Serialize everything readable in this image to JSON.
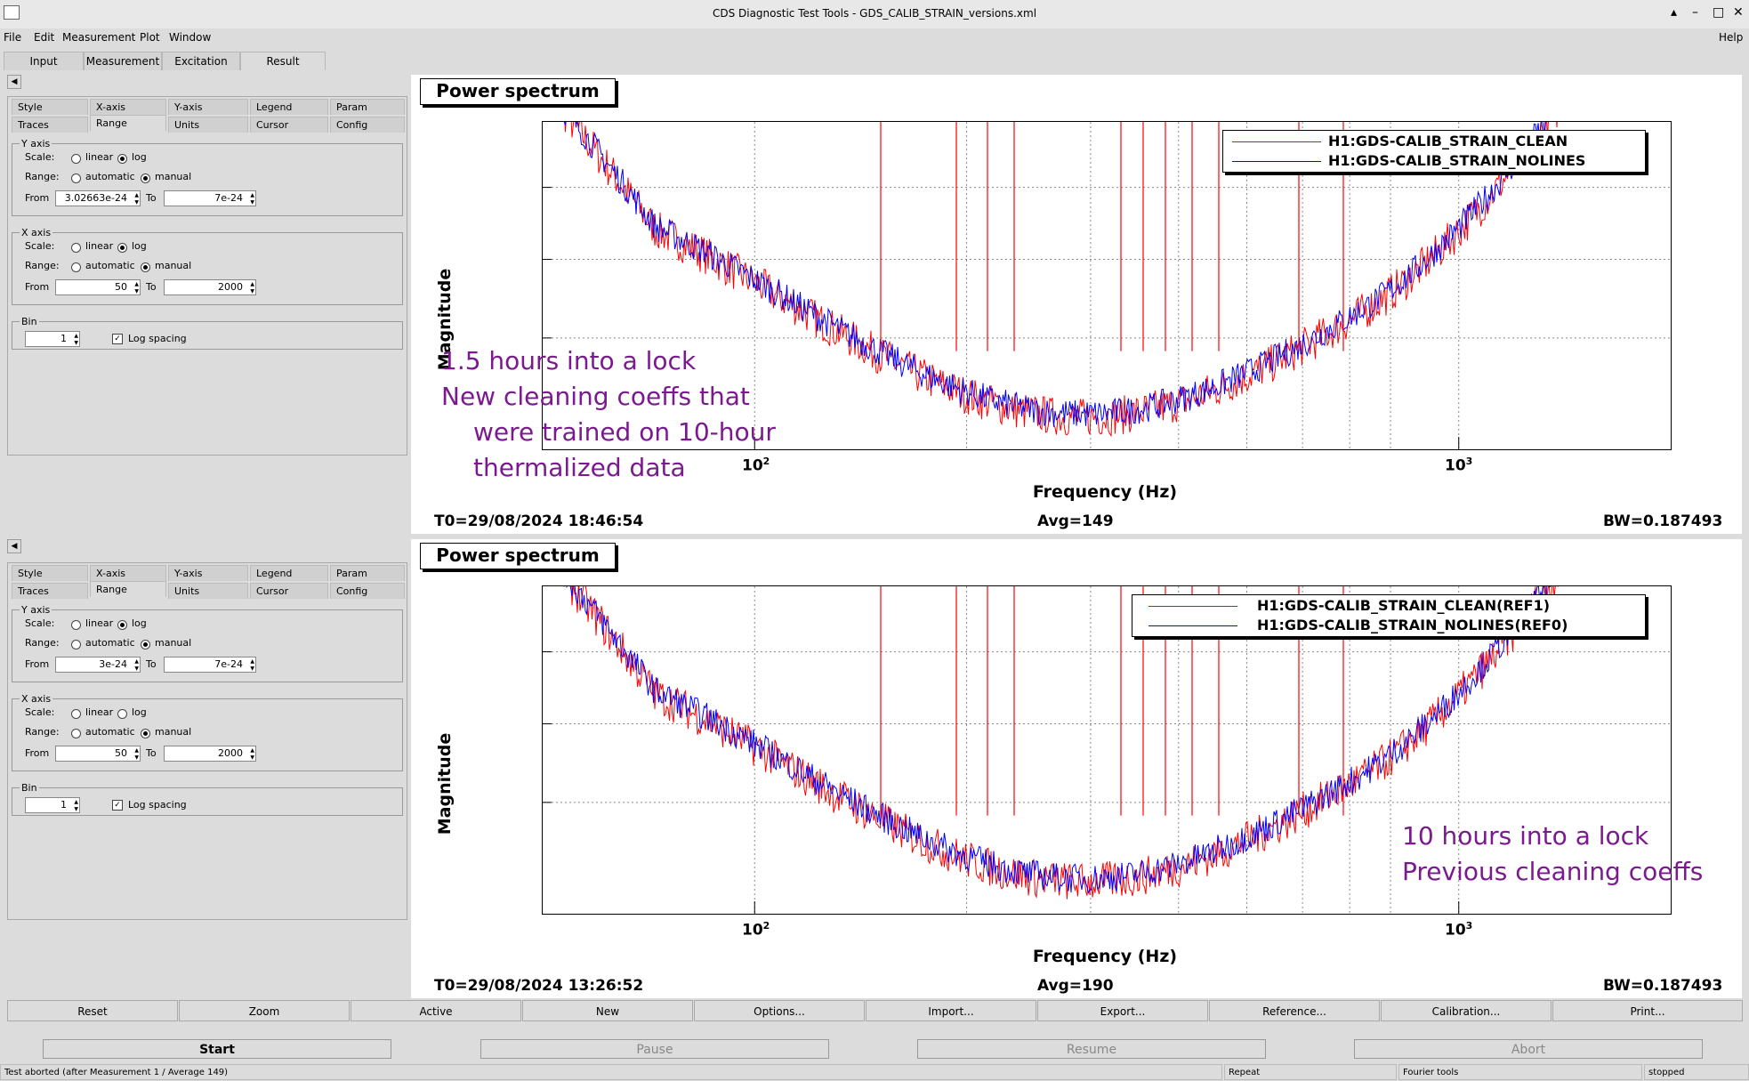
{
  "window": {
    "title": "CDS Diagnostic Test Tools - GDS_CALIB_STRAIN_versions.xml"
  },
  "menu": {
    "file": "File",
    "edit": "Edit",
    "measurement": "Measurement",
    "plot": "Plot",
    "window": "Window",
    "help": "Help"
  },
  "main_tabs": [
    "Input",
    "Measurement",
    "Excitation",
    "Result"
  ],
  "panels": [
    {
      "options": {
        "tabs_row1": [
          "Style",
          "X-axis",
          "Y-axis",
          "Legend",
          "Param"
        ],
        "tabs_row2": [
          "Traces",
          "Range",
          "Units",
          "Cursor",
          "Config"
        ],
        "yaxis": {
          "legend": "Y axis",
          "scale_label": "Scale:",
          "linear": "linear",
          "log": "log",
          "range_label": "Range:",
          "automatic": "automatic",
          "manual": "manual",
          "from_label": "From",
          "from": "3.02663e-24",
          "to_label": "To",
          "to": "7e-24"
        },
        "xaxis": {
          "legend": "X axis",
          "scale_label": "Scale:",
          "linear": "linear",
          "log": "log",
          "range_label": "Range:",
          "automatic": "automatic",
          "manual": "manual",
          "from_label": "From",
          "from": "50",
          "to_label": "To",
          "to": "2000"
        },
        "bin": {
          "legend": "Bin",
          "value": "1",
          "log_spacing": "Log spacing"
        }
      },
      "plot": {
        "title": "Power spectrum",
        "ylabel": "Magnitude",
        "xlabel": "Frequency (Hz)",
        "xtick_100": "10",
        "xtick_100_exp": "2",
        "xtick_1000": "10",
        "xtick_1000_exp": "3",
        "t0": "T0=29/08/2024 18:46:54",
        "avg": "Avg=149",
        "bw": "BW=0.187493",
        "legend": [
          "H1:GDS-CALIB_STRAIN_CLEAN",
          "H1:GDS-CALIB_STRAIN_NOLINES"
        ],
        "annotation": [
          "1.5 hours into a lock",
          "New cleaning coeffs that",
          "were trained on 10-hour",
          "thermalized data"
        ]
      }
    },
    {
      "options": {
        "tabs_row1": [
          "Style",
          "X-axis",
          "Y-axis",
          "Legend",
          "Param"
        ],
        "tabs_row2": [
          "Traces",
          "Range",
          "Units",
          "Cursor",
          "Config"
        ],
        "yaxis": {
          "legend": "Y axis",
          "scale_label": "Scale:",
          "linear": "linear",
          "log": "log",
          "range_label": "Range:",
          "automatic": "automatic",
          "manual": "manual",
          "from_label": "From",
          "from": "3e-24",
          "to_label": "To",
          "to": "7e-24"
        },
        "xaxis": {
          "legend": "X axis",
          "scale_label": "Scale:",
          "linear": "linear",
          "log": "log",
          "range_label": "Range:",
          "automatic": "automatic",
          "manual": "manual",
          "from_label": "From",
          "from": "50",
          "to_label": "To",
          "to": "2000"
        },
        "bin": {
          "legend": "Bin",
          "value": "1",
          "log_spacing": "Log spacing"
        }
      },
      "plot": {
        "title": "Power spectrum",
        "ylabel": "Magnitude",
        "xlabel": "Frequency (Hz)",
        "xtick_100": "10",
        "xtick_100_exp": "2",
        "xtick_1000": "10",
        "xtick_1000_exp": "3",
        "t0": "T0=29/08/2024 13:26:52",
        "avg": "Avg=190",
        "bw": "BW=0.187493",
        "legend": [
          "H1:GDS-CALIB_STRAIN_CLEAN(REF1)",
          "H1:GDS-CALIB_STRAIN_NOLINES(REF0)"
        ],
        "annotation": [
          "10 hours into a lock",
          "Previous cleaning coeffs"
        ]
      }
    }
  ],
  "buttons": [
    "Reset",
    "Zoom",
    "Active",
    "New",
    "Options...",
    "Import...",
    "Export...",
    "Reference...",
    "Calibration...",
    "Print..."
  ],
  "controls": [
    "Start",
    "Pause",
    "Resume",
    "Abort"
  ],
  "status": {
    "message": "Test aborted (after Measurement 1 / Average 149)",
    "mode": "Repeat",
    "tool": "Fourier tools",
    "state": "stopped"
  },
  "colors": {
    "clean": "#ff0000",
    "nolines": "#0000ff",
    "annotation": "#7b1a8f"
  },
  "chart_data": [
    {
      "type": "line",
      "title": "Power spectrum",
      "xlabel": "Frequency (Hz)",
      "ylabel": "Magnitude",
      "xlim": [
        50,
        2000
      ],
      "ylim": [
        3.02663e-24,
        7e-24
      ],
      "xscale": "log",
      "yscale": "log",
      "grid": true,
      "legend_position": "top-right",
      "series": [
        {
          "name": "H1:GDS-CALIB_STRAIN_CLEAN",
          "color": "#ff0000"
        },
        {
          "name": "H1:GDS-CALIB_STRAIN_NOLINES",
          "color": "#0000ff"
        }
      ]
    },
    {
      "type": "line",
      "title": "Power spectrum",
      "xlabel": "Frequency (Hz)",
      "ylabel": "Magnitude",
      "xlim": [
        50,
        2000
      ],
      "ylim": [
        3e-24,
        7e-24
      ],
      "xscale": "log",
      "yscale": "log",
      "grid": true,
      "legend_position": "top-right",
      "series": [
        {
          "name": "H1:GDS-CALIB_STRAIN_CLEAN(REF1)",
          "color": "#ff0000"
        },
        {
          "name": "H1:GDS-CALIB_STRAIN_NOLINES(REF0)",
          "color": "#0000ff"
        }
      ]
    }
  ]
}
